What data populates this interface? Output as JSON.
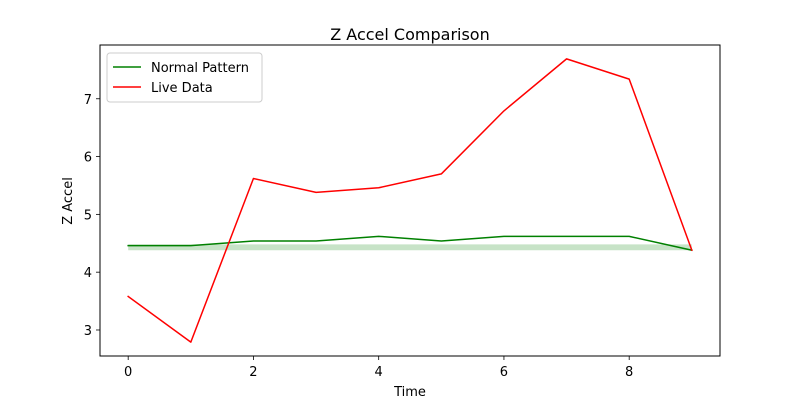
{
  "chart_data": {
    "type": "line",
    "title": "Z Accel Comparison",
    "xlabel": "Time",
    "ylabel": "Z Accel",
    "xlim": [
      -0.45,
      9.45
    ],
    "ylim": [
      2.55,
      7.93
    ],
    "xticks": [
      0,
      2,
      4,
      6,
      8
    ],
    "yticks": [
      3,
      4,
      5,
      6,
      7
    ],
    "grid": false,
    "legend_position": "upper-left",
    "x": [
      0,
      1,
      2,
      3,
      4,
      5,
      6,
      7,
      8,
      9
    ],
    "series": [
      {
        "name": "Normal Pattern",
        "color": "#008000",
        "values": [
          4.46,
          4.46,
          4.54,
          4.54,
          4.62,
          4.54,
          4.62,
          4.62,
          4.62,
          4.38
        ]
      },
      {
        "name": "Live Data",
        "color": "#ff0000",
        "values": [
          3.58,
          2.79,
          5.62,
          5.38,
          5.46,
          5.7,
          6.79,
          7.69,
          7.34,
          4.38
        ]
      }
    ],
    "band": {
      "color": "#008000",
      "opacity": 0.22,
      "lower": [
        4.38,
        4.38,
        4.38,
        4.38,
        4.38,
        4.38,
        4.38,
        4.38,
        4.38,
        4.38
      ],
      "upper": [
        4.48,
        4.48,
        4.48,
        4.48,
        4.48,
        4.48,
        4.48,
        4.48,
        4.48,
        4.48
      ]
    }
  }
}
